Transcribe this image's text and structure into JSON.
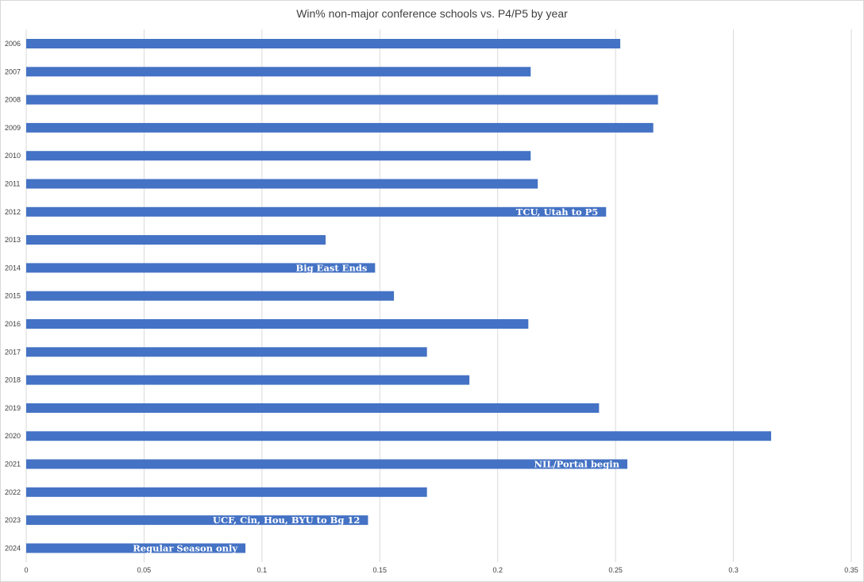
{
  "chart_data": {
    "type": "bar",
    "orientation": "horizontal",
    "title": "Win% non-major conference schools vs. P4/P5 by year",
    "xlabel": "",
    "ylabel": "",
    "xlim": [
      0,
      0.35
    ],
    "x_ticks": [
      "0",
      "0.05",
      "0.1",
      "0.15",
      "0.2",
      "0.25",
      "0.3",
      "0.35"
    ],
    "grid": true,
    "legend": "none",
    "bar_color": "#4472c4",
    "categories": [
      "2006",
      "2007",
      "2008",
      "2009",
      "2010",
      "2011",
      "2012",
      "2013",
      "2014",
      "2015",
      "2016",
      "2017",
      "2018",
      "2019",
      "2020",
      "2021",
      "2022",
      "2023",
      "2024"
    ],
    "values": [
      0.252,
      0.214,
      0.268,
      0.266,
      0.214,
      0.217,
      0.246,
      0.127,
      0.148,
      0.156,
      0.213,
      0.17,
      0.188,
      0.243,
      0.316,
      0.255,
      0.17,
      0.145,
      0.093
    ],
    "annotations": [
      {
        "category": "2012",
        "text": "TCU, Utah to P5"
      },
      {
        "category": "2014",
        "text": "Big East Ends"
      },
      {
        "category": "2021",
        "text": "NIL/Portal begin"
      },
      {
        "category": "2023",
        "text": "UCF, Cin, Hou, BYU to Bg 12"
      },
      {
        "category": "2024",
        "text": "Regular Season only"
      }
    ]
  }
}
